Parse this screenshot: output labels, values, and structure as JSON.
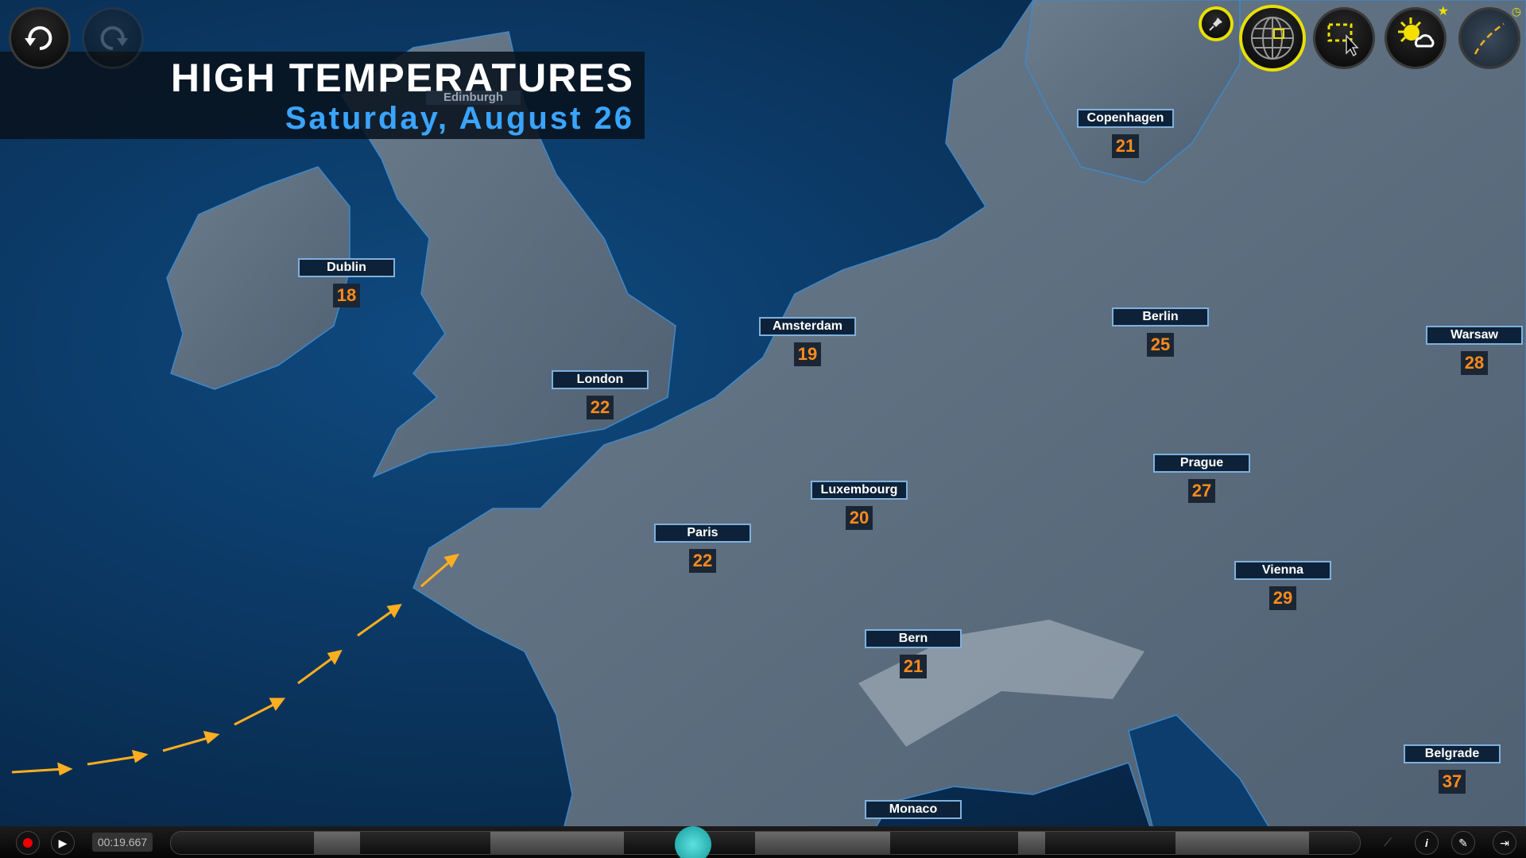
{
  "header": {
    "title": "HIGH TEMPERATURES",
    "subtitle": "Saturday, August 26",
    "background_label": "Edinburgh"
  },
  "cities": [
    {
      "name": "Copenhagen",
      "temp": "21"
    },
    {
      "name": "Dublin",
      "temp": "18"
    },
    {
      "name": "Amsterdam",
      "temp": "19"
    },
    {
      "name": "Berlin",
      "temp": "25"
    },
    {
      "name": "Warsaw",
      "temp": "28"
    },
    {
      "name": "London",
      "temp": "22"
    },
    {
      "name": "Luxembourg",
      "temp": "20"
    },
    {
      "name": "Prague",
      "temp": "27"
    },
    {
      "name": "Paris",
      "temp": "22"
    },
    {
      "name": "Vienna",
      "temp": "29"
    },
    {
      "name": "Bern",
      "temp": "21"
    },
    {
      "name": "Belgrade",
      "temp": "37"
    },
    {
      "name": "Monaco",
      "temp": ""
    }
  ],
  "toolbar": {
    "icons": [
      "undo-icon",
      "redo-icon",
      "pin-icon",
      "globe-icon",
      "region-select-icon",
      "weather-icon",
      "track-icon"
    ]
  },
  "playback": {
    "time": "00:19.667",
    "progress": 0.44
  },
  "colors": {
    "temperature": "#ff8a1c",
    "subtitle": "#3aa4ff",
    "accent": "#e8e000",
    "scrubber": "#1ab0b0",
    "ocean": "#0a3562",
    "land": "#5c6e80"
  }
}
